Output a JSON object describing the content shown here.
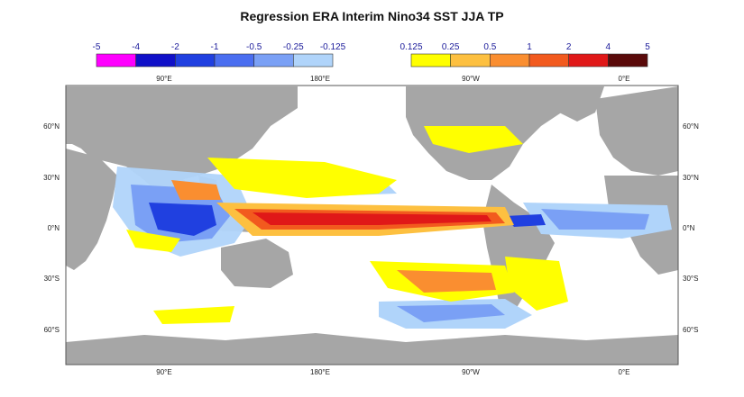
{
  "title": "Regression ERA Interim Nino34 SST JJA TP",
  "colors": {
    "land": "#a6a6a6",
    "ocean": "#ffffff",
    "frame": "#555555",
    "label_blue": "#1a1a9a"
  },
  "colorbar_negative": {
    "labels": [
      "-5",
      "-4",
      "-2",
      "-1",
      "-0.5",
      "-0.25",
      "-0.125"
    ],
    "colors": [
      "#ff00ff",
      "#1010c8",
      "#2040e0",
      "#4a6ef0",
      "#7aa0f5",
      "#b0d4fa"
    ]
  },
  "colorbar_positive": {
    "labels": [
      "0.125",
      "0.25",
      "0.5",
      "1",
      "2",
      "4",
      "5"
    ],
    "colors": [
      "#ffff00",
      "#fdc040",
      "#fa8e30",
      "#f25a1e",
      "#e01818",
      "#5a0a0a"
    ]
  },
  "axes": {
    "top_lon_labels": [
      "90°E",
      "180°E",
      "90°W",
      "0°E"
    ],
    "bottom_lon_labels": [
      "90°E",
      "180°E",
      "90°W",
      "0°E"
    ],
    "left_lat_labels": [
      "60°N",
      "30°N",
      "0°N",
      "30°S",
      "60°S"
    ],
    "right_lat_labels": [
      "60°N",
      "30°N",
      "0°N",
      "30°S",
      "60°S"
    ]
  }
}
